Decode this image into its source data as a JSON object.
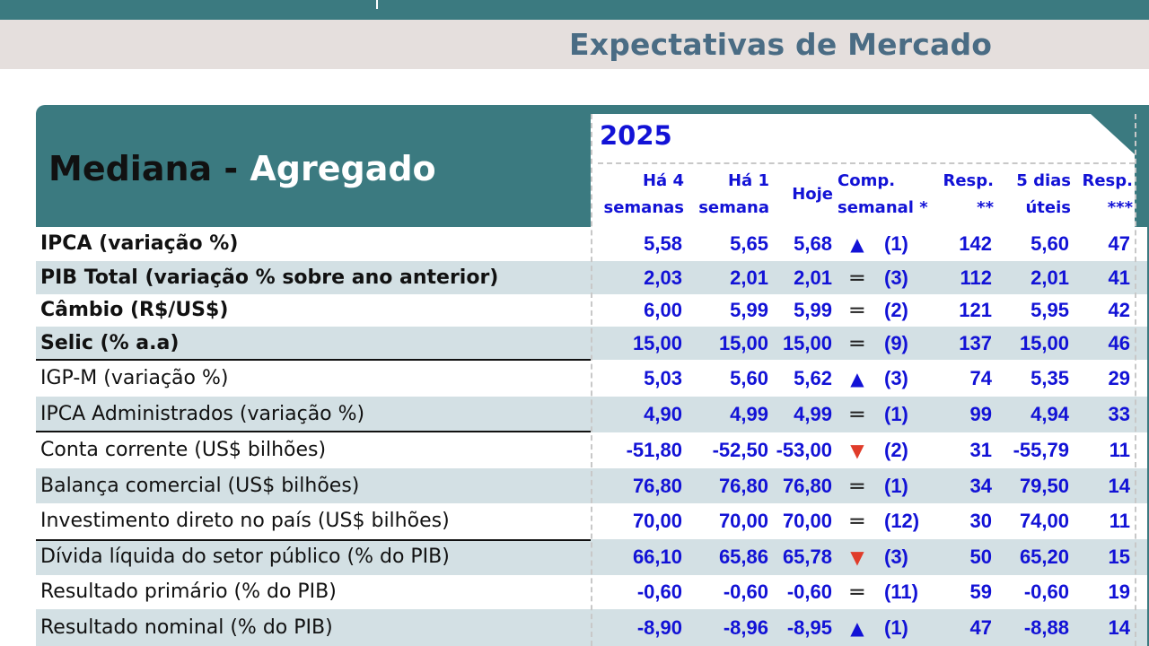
{
  "header": {
    "title": "Expectativas de Mercado"
  },
  "panel": {
    "title_black": "Mediana - ",
    "title_white": "Agregado",
    "year": "2025"
  },
  "columns": {
    "ha4_1": "Há 4",
    "ha4_2": "semanas",
    "ha1_1": "Há 1",
    "ha1_2": "semana",
    "hoje": "Hoje",
    "comp_1": "Comp.",
    "comp_2": "semanal *",
    "resp_1": "Resp.",
    "resp_2": "**",
    "dias_1": "5 dias",
    "dias_2": "úteis",
    "resp3_1": "Resp.",
    "resp3_2": "***"
  },
  "rows": [
    {
      "label": "IPCA (variação %)",
      "ha4": "5,58",
      "ha1": "5,65",
      "hoje": "5,68",
      "trend": "up",
      "weeks": "(1)",
      "resp": "142",
      "dias5": "5,60",
      "resp3": "47",
      "bold": true
    },
    {
      "label": "PIB Total (variação % sobre ano anterior)",
      "ha4": "2,03",
      "ha1": "2,01",
      "hoje": "2,01",
      "trend": "equal",
      "weeks": "(3)",
      "resp": "112",
      "dias5": "2,01",
      "resp3": "41",
      "bold": true
    },
    {
      "label": "Câmbio (R$/US$)",
      "ha4": "6,00",
      "ha1": "5,99",
      "hoje": "5,99",
      "trend": "equal",
      "weeks": "(2)",
      "resp": "121",
      "dias5": "5,95",
      "resp3": "42",
      "bold": true
    },
    {
      "label": "Selic (% a.a)",
      "ha4": "15,00",
      "ha1": "15,00",
      "hoje": "15,00",
      "trend": "equal",
      "weeks": "(9)",
      "resp": "137",
      "dias5": "15,00",
      "resp3": "46",
      "bold": true
    },
    {
      "label": "IGP-M (variação %)",
      "ha4": "5,03",
      "ha1": "5,60",
      "hoje": "5,62",
      "trend": "up",
      "weeks": "(3)",
      "resp": "74",
      "dias5": "5,35",
      "resp3": "29",
      "bold": false
    },
    {
      "label": "IPCA Administrados (variação %)",
      "ha4": "4,90",
      "ha1": "4,99",
      "hoje": "4,99",
      "trend": "equal",
      "weeks": "(1)",
      "resp": "99",
      "dias5": "4,94",
      "resp3": "33",
      "bold": false
    },
    {
      "label": "Conta corrente (US$ bilhões)",
      "ha4": "-51,80",
      "ha1": "-52,50",
      "hoje": "-53,00",
      "trend": "down",
      "weeks": "(2)",
      "resp": "31",
      "dias5": "-55,79",
      "resp3": "11",
      "bold": false
    },
    {
      "label": "Balança comercial (US$ bilhões)",
      "ha4": "76,80",
      "ha1": "76,80",
      "hoje": "76,80",
      "trend": "equal",
      "weeks": "(1)",
      "resp": "34",
      "dias5": "79,50",
      "resp3": "14",
      "bold": false
    },
    {
      "label": "Investimento direto no país (US$ bilhões)",
      "ha4": "70,00",
      "ha1": "70,00",
      "hoje": "70,00",
      "trend": "equal",
      "weeks": "(12)",
      "resp": "30",
      "dias5": "74,00",
      "resp3": "11",
      "bold": false
    },
    {
      "label": "Dívida líquida do setor público (% do PIB)",
      "ha4": "66,10",
      "ha1": "65,86",
      "hoje": "65,78",
      "trend": "down",
      "weeks": "(3)",
      "resp": "50",
      "dias5": "65,20",
      "resp3": "15",
      "bold": false
    },
    {
      "label": "Resultado primário (% do PIB)",
      "ha4": "-0,60",
      "ha1": "-0,60",
      "hoje": "-0,60",
      "trend": "equal",
      "weeks": "(11)",
      "resp": "59",
      "dias5": "-0,60",
      "resp3": "19",
      "bold": false
    },
    {
      "label": "Resultado nominal (% do PIB)",
      "ha4": "-8,90",
      "ha1": "-8,96",
      "hoje": "-8,95",
      "trend": "up",
      "weeks": "(1)",
      "resp": "47",
      "dias5": "-8,88",
      "resp3": "14",
      "bold": false
    }
  ],
  "icons": {
    "up": "triangle-up-icon",
    "down": "triangle-down-icon",
    "equal": "equal-icon"
  },
  "colors": {
    "teal": "#3b7a80",
    "blue_values": "#1212d6",
    "down_red": "#e03c2a",
    "stripe": "#d3e0e4"
  }
}
